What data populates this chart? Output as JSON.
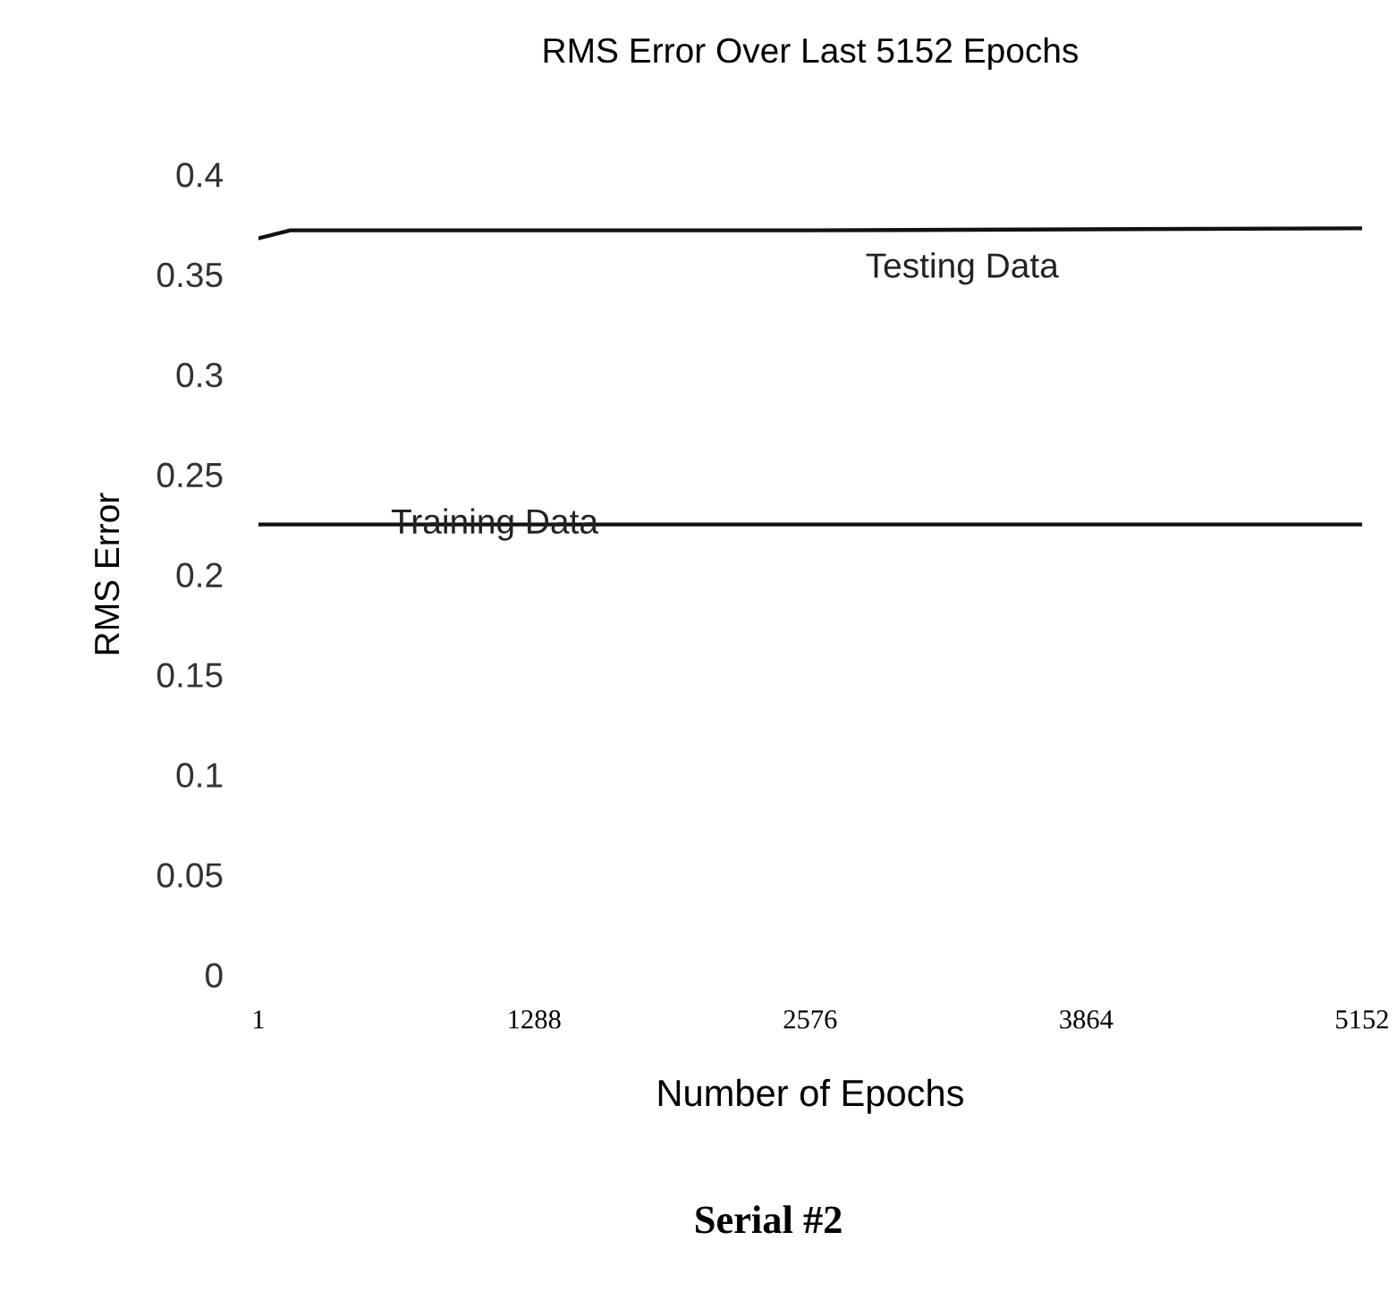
{
  "chart_data": {
    "type": "line",
    "title": "RMS Error Over Last 5152 Epochs",
    "xlabel": "Number of Epochs",
    "ylabel": "RMS Error",
    "series": [
      {
        "name": "Testing Data",
        "color": "#111111",
        "x": [
          1,
          150,
          2576,
          5152
        ],
        "values": [
          0.368,
          0.372,
          0.372,
          0.373
        ]
      },
      {
        "name": "Training Data",
        "color": "#111111",
        "x": [
          1,
          2576,
          5152
        ],
        "values": [
          0.225,
          0.225,
          0.225
        ]
      }
    ],
    "xlim": [
      1,
      5152
    ],
    "xticks": [
      1,
      1288,
      2576,
      3864,
      5152
    ],
    "ylim": [
      0,
      0.4
    ],
    "yticks": [
      0,
      0.05,
      0.1,
      0.15,
      0.2,
      0.25,
      0.3,
      0.35,
      0.4
    ],
    "grid": false,
    "legend": false,
    "marker": "none",
    "line_style": "solid",
    "annotations": [
      "Serial #2"
    ]
  }
}
